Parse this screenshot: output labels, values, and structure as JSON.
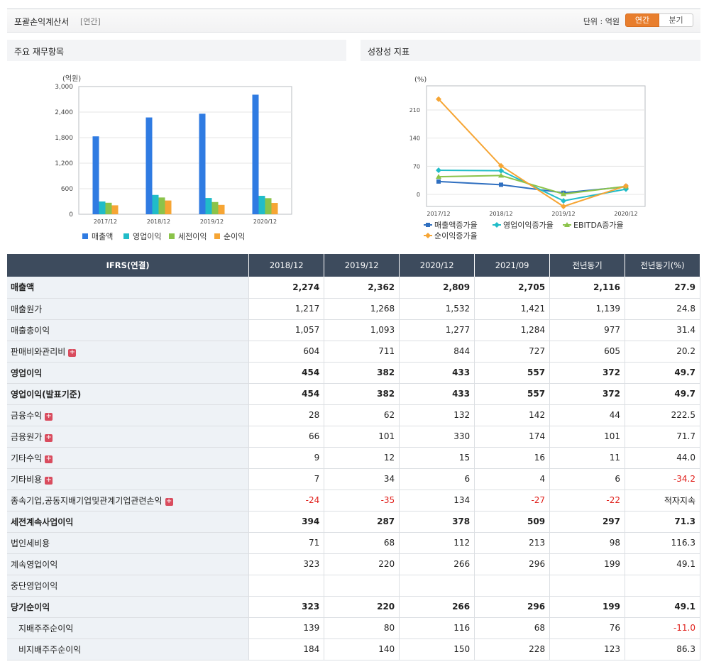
{
  "header": {
    "title": "포괄손익계산서",
    "subtitle": "[연간]",
    "unit": "단위 : 억원",
    "tabs": [
      "연간",
      "분기"
    ]
  },
  "left_panel": {
    "title": "주요 재무항목",
    "chart_data": {
      "type": "bar",
      "ylabel": "(억원)",
      "ylim": [
        0,
        3000
      ],
      "yticks": [
        "0",
        "600",
        "1,200",
        "1,800",
        "2,400",
        "3,000"
      ],
      "categories": [
        "2017/12",
        "2018/12",
        "2019/12",
        "2020/12"
      ],
      "series": [
        {
          "name": "매출액",
          "color": "#2f7be2",
          "values": [
            1830,
            2274,
            2362,
            2809
          ]
        },
        {
          "name": "영업이익",
          "color": "#21bcc8",
          "values": [
            300,
            454,
            382,
            433
          ]
        },
        {
          "name": "세전이익",
          "color": "#8bc34a",
          "values": [
            270,
            394,
            287,
            378
          ]
        },
        {
          "name": "순이익",
          "color": "#f6a534",
          "values": [
            210,
            323,
            220,
            266
          ]
        }
      ]
    }
  },
  "right_panel": {
    "title": "성장성 지표",
    "chart_data": {
      "type": "line",
      "ylabel": "(%)",
      "ylim": [
        -30,
        270
      ],
      "yticks": [
        0,
        70,
        140,
        210
      ],
      "categories": [
        "2017/12",
        "2018/12",
        "2019/12",
        "2020/12"
      ],
      "series": [
        {
          "name": "매출액증가율",
          "color": "#2f6fc0",
          "marker": "square",
          "values": [
            32,
            24,
            4,
            19
          ]
        },
        {
          "name": "영업이익증가율",
          "color": "#21bcc8",
          "marker": "diamond",
          "values": [
            60,
            59,
            -16,
            13
          ]
        },
        {
          "name": "EBITDA증가율",
          "color": "#8bc34a",
          "marker": "triangle",
          "values": [
            44,
            47,
            1,
            20
          ]
        },
        {
          "name": "순이익증가율",
          "color": "#f6a534",
          "marker": "diamond",
          "values": [
            237,
            71,
            -30,
            21
          ]
        }
      ]
    }
  },
  "table": {
    "headers": [
      "IFRS(연결)",
      "2018/12",
      "2019/12",
      "2020/12",
      "2021/09",
      "전년동기",
      "전년동기(%)"
    ],
    "rows": [
      {
        "label": "매출액",
        "bold": true,
        "cells": [
          "2,274",
          "2,362",
          "2,809",
          "2,705",
          "2,116",
          "27.9"
        ]
      },
      {
        "label": "매출원가",
        "cells": [
          "1,217",
          "1,268",
          "1,532",
          "1,421",
          "1,139",
          "24.8"
        ]
      },
      {
        "label": "매출총이익",
        "cells": [
          "1,057",
          "1,093",
          "1,277",
          "1,284",
          "977",
          "31.4"
        ]
      },
      {
        "label": "판매비와관리비",
        "expand": true,
        "cells": [
          "604",
          "711",
          "844",
          "727",
          "605",
          "20.2"
        ]
      },
      {
        "label": "영업이익",
        "bold": true,
        "cells": [
          "454",
          "382",
          "433",
          "557",
          "372",
          "49.7"
        ]
      },
      {
        "label": "영업이익(발표기준)",
        "bold": true,
        "cells": [
          "454",
          "382",
          "433",
          "557",
          "372",
          "49.7"
        ]
      },
      {
        "label": "금융수익",
        "expand": true,
        "cells": [
          "28",
          "62",
          "132",
          "142",
          "44",
          "222.5"
        ]
      },
      {
        "label": "금융원가",
        "expand": true,
        "cells": [
          "66",
          "101",
          "330",
          "174",
          "101",
          "71.7"
        ]
      },
      {
        "label": "기타수익",
        "expand": true,
        "cells": [
          "9",
          "12",
          "15",
          "16",
          "11",
          "44.0"
        ]
      },
      {
        "label": "기타비용",
        "expand": true,
        "cells": [
          "7",
          "34",
          "6",
          "4",
          "6",
          "-34.2"
        ]
      },
      {
        "label": "종속기업,공동지배기업및관계기업관련손익",
        "expand": true,
        "cells": [
          "-24",
          "-35",
          "134",
          "-27",
          "-22",
          "적자지속"
        ]
      },
      {
        "label": "세전계속사업이익",
        "bold": true,
        "cells": [
          "394",
          "287",
          "378",
          "509",
          "297",
          "71.3"
        ]
      },
      {
        "label": "법인세비용",
        "cells": [
          "71",
          "68",
          "112",
          "213",
          "98",
          "116.3"
        ]
      },
      {
        "label": "계속영업이익",
        "cells": [
          "323",
          "220",
          "266",
          "296",
          "199",
          "49.1"
        ]
      },
      {
        "label": "중단영업이익",
        "cells": [
          "",
          "",
          "",
          "",
          "",
          ""
        ]
      },
      {
        "label": "당기순이익",
        "bold": true,
        "cells": [
          "323",
          "220",
          "266",
          "296",
          "199",
          "49.1"
        ]
      },
      {
        "label": "지배주주순이익",
        "indent": true,
        "cells": [
          "139",
          "80",
          "116",
          "68",
          "76",
          "-11.0"
        ]
      },
      {
        "label": "비지배주주순이익",
        "indent": true,
        "cells": [
          "184",
          "140",
          "150",
          "228",
          "123",
          "86.3"
        ]
      }
    ]
  }
}
